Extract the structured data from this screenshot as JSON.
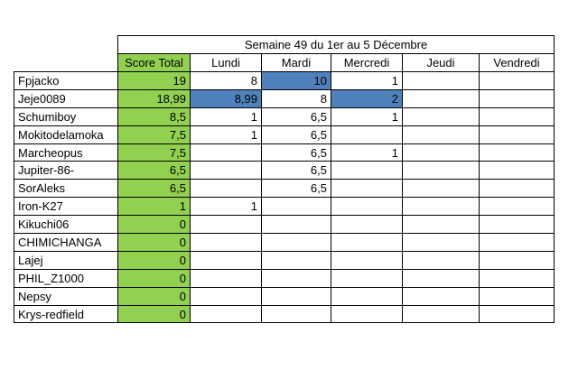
{
  "title": "Semaine 49 du 1er au 5 Décembre",
  "columns": [
    "Score Total",
    "Lundi",
    "Mardi",
    "Mercredi",
    "Jeudi",
    "Vendredi"
  ],
  "colors": {
    "score_column_fill": "#92d050",
    "highlight_fill": "#4f81bd",
    "grid_border": "#000000",
    "background": "#ffffff"
  },
  "rows": [
    {
      "name": "Fpjacko",
      "values": [
        "19",
        "8",
        "10",
        "1",
        "",
        ""
      ],
      "highlights": [
        2
      ]
    },
    {
      "name": "Jeje0089",
      "values": [
        "18,99",
        "8,99",
        "8",
        "2",
        "",
        ""
      ],
      "highlights": [
        1,
        3
      ]
    },
    {
      "name": "Schumiboy",
      "values": [
        "8,5",
        "1",
        "6,5",
        "1",
        "",
        ""
      ],
      "highlights": []
    },
    {
      "name": "Mokitodelamoka",
      "values": [
        "7,5",
        "1",
        "6,5",
        "",
        "",
        ""
      ],
      "highlights": []
    },
    {
      "name": "Marcheopus",
      "values": [
        "7,5",
        "",
        "6,5",
        "1",
        "",
        ""
      ],
      "highlights": []
    },
    {
      "name": "Jupiter-86-",
      "values": [
        "6,5",
        "",
        "6,5",
        "",
        "",
        ""
      ],
      "highlights": []
    },
    {
      "name": "SorAleks",
      "values": [
        "6,5",
        "",
        "6,5",
        "",
        "",
        ""
      ],
      "highlights": []
    },
    {
      "name": "Iron-K27",
      "values": [
        "1",
        "1",
        "",
        "",
        "",
        ""
      ],
      "highlights": []
    },
    {
      "name": "Kikuchi06",
      "values": [
        "0",
        "",
        "",
        "",
        "",
        ""
      ],
      "highlights": []
    },
    {
      "name": "CHIMICHANGA",
      "values": [
        "0",
        "",
        "",
        "",
        "",
        ""
      ],
      "highlights": []
    },
    {
      "name": "Lajej",
      "values": [
        "0",
        "",
        "",
        "",
        "",
        ""
      ],
      "highlights": []
    },
    {
      "name": "PHIL_Z1000",
      "values": [
        "0",
        "",
        "",
        "",
        "",
        ""
      ],
      "highlights": []
    },
    {
      "name": "Nepsy",
      "values": [
        "0",
        "",
        "",
        "",
        "",
        ""
      ],
      "highlights": []
    },
    {
      "name": "Krys-redfield",
      "values": [
        "0",
        "",
        "",
        "",
        "",
        ""
      ],
      "highlights": []
    }
  ]
}
